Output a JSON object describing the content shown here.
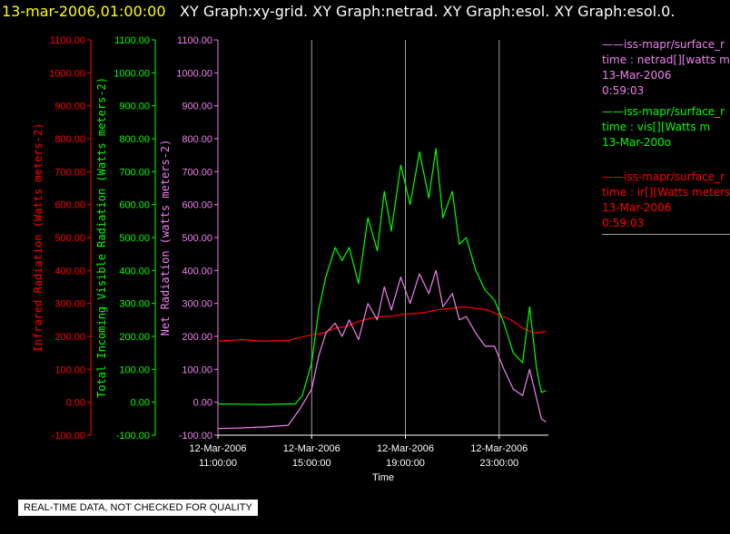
{
  "header": {
    "timestamp": "13-mar-2006,01:00:00",
    "titles": "XY Graph:xy-grid.  XY Graph:netrad.  XY Graph:esol.  XY Graph:esol.0."
  },
  "colors": {
    "infrared": "#ff0000",
    "visible": "#00ff00",
    "net": "#ee82ee",
    "grid": "#a0a0a0",
    "text": "#ffffff"
  },
  "legend": [
    {
      "lines": [
        "——iss-mapr/surface_r",
        "time : netrad[][watts m",
        "13-Mar-2006",
        "0:59:03"
      ],
      "color": "#ee82ee"
    },
    {
      "lines": [
        "——iss-mapr/surface_r",
        "time : vis[][Watts m",
        "13-Mar-200o"
      ],
      "color": "#00ff00"
    },
    {
      "lines": [
        "——iss-mapr/surface_r",
        "time : ir[][Watts meters",
        "13-Mar-2006",
        "0:59:03"
      ],
      "color": "#ff0000"
    }
  ],
  "disclaimer": "REAL-TIME DATA, NOT CHECKED FOR QUALITY",
  "chart_data": {
    "type": "line",
    "xlabel": "Time",
    "x_ticks": [
      {
        "line1": "12-Mar-2006",
        "line2": "11:00:00",
        "hour": 11
      },
      {
        "line1": "12-Mar-2006",
        "line2": "15:00:00",
        "hour": 15
      },
      {
        "line1": "12-Mar-2006",
        "line2": "19:00:00",
        "hour": 19
      },
      {
        "line1": "12-Mar-2006",
        "line2": "23:00:00",
        "hour": 23
      }
    ],
    "xlim_hours": [
      11,
      25.1
    ],
    "ylim": [
      -100,
      1100
    ],
    "y_ticks": [
      "1100.00",
      "1000.00",
      "900.00",
      "800.00",
      "700.00",
      "600.00",
      "500.00",
      "400.00",
      "300.00",
      "200.00",
      "100.00",
      "0.00",
      "-100.00"
    ],
    "y_axes": [
      {
        "label": "Infrared Radiation (Watts meters-2)",
        "color": "#ff0000"
      },
      {
        "label": "Total Incoming Visible Radiation (Watts meters-2)",
        "color": "#00ff00"
      },
      {
        "label": "Net Radiation (watts meters-2)",
        "color": "#ee82ee"
      }
    ],
    "grid": "vertical lines at x ticks",
    "series": [
      {
        "name": "ir",
        "color": "#ff0000",
        "points": [
          [
            11,
            185
          ],
          [
            12,
            190
          ],
          [
            13,
            185
          ],
          [
            14,
            188
          ],
          [
            15,
            205
          ],
          [
            15.5,
            210
          ],
          [
            16,
            225
          ],
          [
            16.5,
            230
          ],
          [
            17,
            245
          ],
          [
            17.5,
            255
          ],
          [
            18,
            260
          ],
          [
            18.5,
            262
          ],
          [
            19,
            268
          ],
          [
            19.5,
            270
          ],
          [
            20,
            275
          ],
          [
            20.5,
            282
          ],
          [
            21,
            285
          ],
          [
            21.5,
            290
          ],
          [
            22,
            285
          ],
          [
            22.5,
            280
          ],
          [
            23,
            265
          ],
          [
            23.5,
            250
          ],
          [
            24,
            225
          ],
          [
            24.5,
            210
          ],
          [
            25,
            215
          ]
        ]
      },
      {
        "name": "vis",
        "color": "#00ff00",
        "points": [
          [
            11,
            -5
          ],
          [
            12,
            -6
          ],
          [
            13,
            -7
          ],
          [
            14,
            -5
          ],
          [
            14.3,
            -5
          ],
          [
            14.6,
            20
          ],
          [
            15,
            120
          ],
          [
            15.3,
            280
          ],
          [
            15.6,
            380
          ],
          [
            16,
            470
          ],
          [
            16.3,
            430
          ],
          [
            16.6,
            470
          ],
          [
            17,
            360
          ],
          [
            17.4,
            560
          ],
          [
            17.8,
            460
          ],
          [
            18.1,
            640
          ],
          [
            18.4,
            520
          ],
          [
            18.8,
            720
          ],
          [
            19.2,
            600
          ],
          [
            19.6,
            760
          ],
          [
            20,
            620
          ],
          [
            20.3,
            770
          ],
          [
            20.6,
            560
          ],
          [
            21,
            640
          ],
          [
            21.3,
            480
          ],
          [
            21.6,
            500
          ],
          [
            22,
            400
          ],
          [
            22.4,
            340
          ],
          [
            22.8,
            310
          ],
          [
            23.2,
            240
          ],
          [
            23.6,
            150
          ],
          [
            24,
            120
          ],
          [
            24.3,
            290
          ],
          [
            24.6,
            100
          ],
          [
            24.8,
            30
          ],
          [
            25,
            35
          ]
        ]
      },
      {
        "name": "netrad",
        "color": "#ee82ee",
        "points": [
          [
            11,
            -80
          ],
          [
            12,
            -78
          ],
          [
            13,
            -75
          ],
          [
            14,
            -70
          ],
          [
            14.5,
            -20
          ],
          [
            15,
            40
          ],
          [
            15.3,
            140
          ],
          [
            15.6,
            210
          ],
          [
            16,
            240
          ],
          [
            16.3,
            200
          ],
          [
            16.6,
            250
          ],
          [
            17,
            190
          ],
          [
            17.4,
            300
          ],
          [
            17.8,
            250
          ],
          [
            18.1,
            350
          ],
          [
            18.4,
            280
          ],
          [
            18.8,
            380
          ],
          [
            19.2,
            300
          ],
          [
            19.6,
            390
          ],
          [
            20,
            330
          ],
          [
            20.3,
            400
          ],
          [
            20.6,
            290
          ],
          [
            21,
            330
          ],
          [
            21.3,
            250
          ],
          [
            21.6,
            260
          ],
          [
            22,
            210
          ],
          [
            22.4,
            170
          ],
          [
            22.8,
            170
          ],
          [
            23.2,
            100
          ],
          [
            23.6,
            40
          ],
          [
            24,
            20
          ],
          [
            24.3,
            100
          ],
          [
            24.6,
            10
          ],
          [
            24.8,
            -50
          ],
          [
            25,
            -60
          ]
        ]
      }
    ]
  }
}
